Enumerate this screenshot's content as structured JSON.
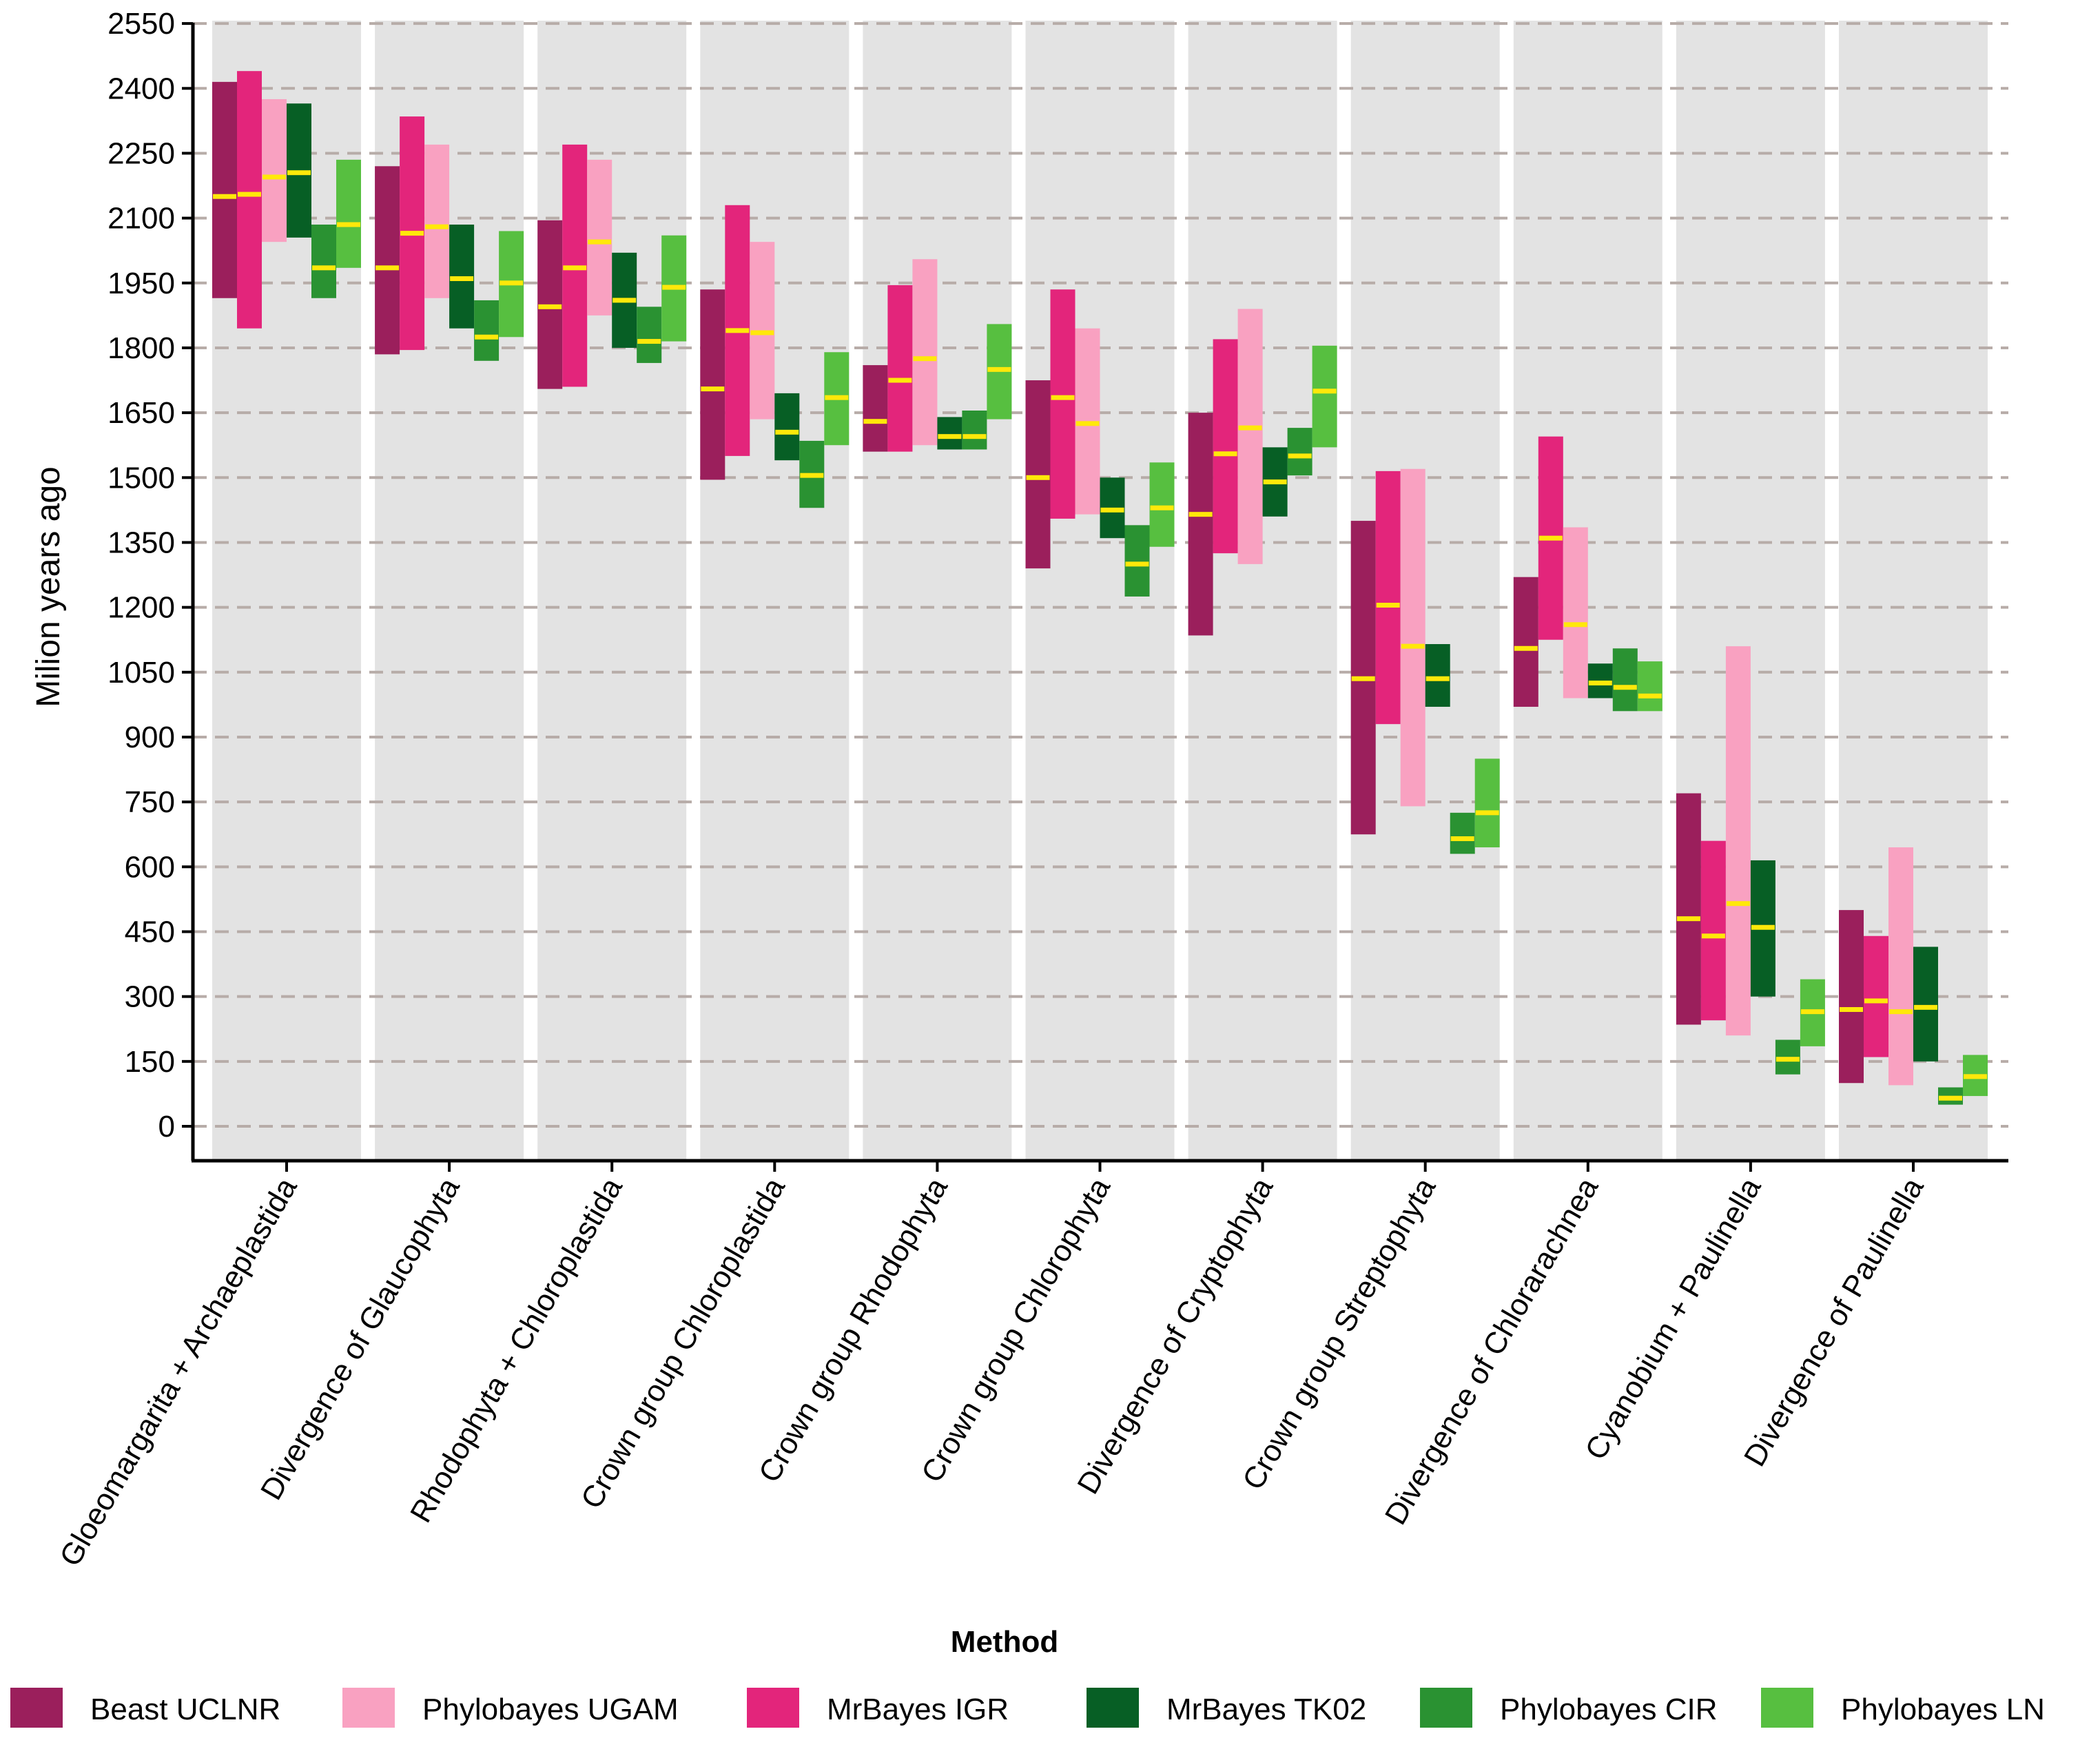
{
  "chart_data": {
    "type": "range-bar",
    "title": "",
    "xlabel": "",
    "ylabel": "Milion years ago",
    "legend_title": "Method",
    "legend_position": "bottom",
    "grid": "horizontal dashed",
    "ylim": [
      -70,
      2550
    ],
    "yticks": [
      0,
      150,
      300,
      450,
      600,
      750,
      900,
      1050,
      1200,
      1350,
      1500,
      1650,
      1800,
      1950,
      2100,
      2250,
      2400,
      2550
    ],
    "categories": [
      "Gloeomargarita + Archaeplastida",
      "Divergence of Glaucophyta",
      "Rhodophyta + Chloroplastida",
      "Crown group Chloroplastida",
      "Crown group Rhodophyta",
      "Crown group Chlorophyta",
      "Divergence of Cryptophyta",
      "Crown group Streptophyta",
      "Divergence of Chlorarachnea",
      "Cyanobium + Paulinella",
      "Divergence of Paulinella"
    ],
    "series": [
      {
        "name": "Beast UCLNR",
        "color": "#9b1f5c",
        "low": [
          1915,
          1785,
          1705,
          1495,
          1560,
          1290,
          1135,
          675,
          970,
          235,
          100
        ],
        "high": [
          2415,
          2220,
          2095,
          1935,
          1760,
          1725,
          1650,
          1400,
          1270,
          770,
          500
        ],
        "median": [
          2150,
          1985,
          1895,
          1705,
          1630,
          1500,
          1415,
          1035,
          1105,
          480,
          270
        ]
      },
      {
        "name": "MrBayes IGR",
        "color": "#e3257b",
        "low": [
          1845,
          1795,
          1710,
          1550,
          1560,
          1405,
          1325,
          930,
          1125,
          245,
          160
        ],
        "high": [
          2440,
          2335,
          2270,
          2130,
          1945,
          1935,
          1820,
          1515,
          1595,
          660,
          440
        ],
        "median": [
          2155,
          2065,
          1985,
          1840,
          1725,
          1685,
          1555,
          1205,
          1360,
          440,
          290
        ]
      },
      {
        "name": "Phylobayes UGAM",
        "color": "#f9a1c1",
        "low": [
          2045,
          1915,
          1875,
          1635,
          1575,
          1415,
          1300,
          740,
          990,
          210,
          95
        ],
        "high": [
          2375,
          2270,
          2235,
          2045,
          2005,
          1845,
          1890,
          1520,
          1385,
          1110,
          645
        ],
        "median": [
          2195,
          2080,
          2045,
          1835,
          1775,
          1625,
          1615,
          1110,
          1160,
          515,
          265
        ]
      },
      {
        "name": "MrBayes TK02",
        "color": "#075f25",
        "low": [
          2055,
          1845,
          1800,
          1540,
          1565,
          1360,
          1410,
          970,
          990,
          300,
          150
        ],
        "high": [
          2365,
          2085,
          2020,
          1695,
          1640,
          1500,
          1570,
          1115,
          1070,
          615,
          415
        ],
        "median": [
          2205,
          1960,
          1910,
          1605,
          1595,
          1425,
          1490,
          1035,
          1025,
          460,
          275
        ]
      },
      {
        "name": "Phylobayes CIR",
        "color": "#2a9232",
        "low": [
          1915,
          1770,
          1765,
          1430,
          1565,
          1225,
          1505,
          630,
          960,
          120,
          50
        ],
        "high": [
          2085,
          1910,
          1895,
          1585,
          1655,
          1390,
          1615,
          725,
          1105,
          200,
          90
        ],
        "median": [
          1985,
          1825,
          1815,
          1505,
          1595,
          1300,
          1550,
          665,
          1015,
          155,
          65
        ]
      },
      {
        "name": "Phylobayes LN",
        "color": "#57bf40",
        "low": [
          1985,
          1825,
          1815,
          1575,
          1635,
          1340,
          1570,
          645,
          960,
          185,
          70
        ],
        "high": [
          2235,
          2070,
          2060,
          1790,
          1855,
          1535,
          1805,
          850,
          1075,
          340,
          165
        ],
        "median": [
          2085,
          1950,
          1940,
          1685,
          1750,
          1430,
          1700,
          725,
          995,
          265,
          115
        ]
      }
    ]
  },
  "colors": {
    "panel_background": "#e3e3e3",
    "median_line": "#ffe80a",
    "gridline": "#b7aca8"
  }
}
